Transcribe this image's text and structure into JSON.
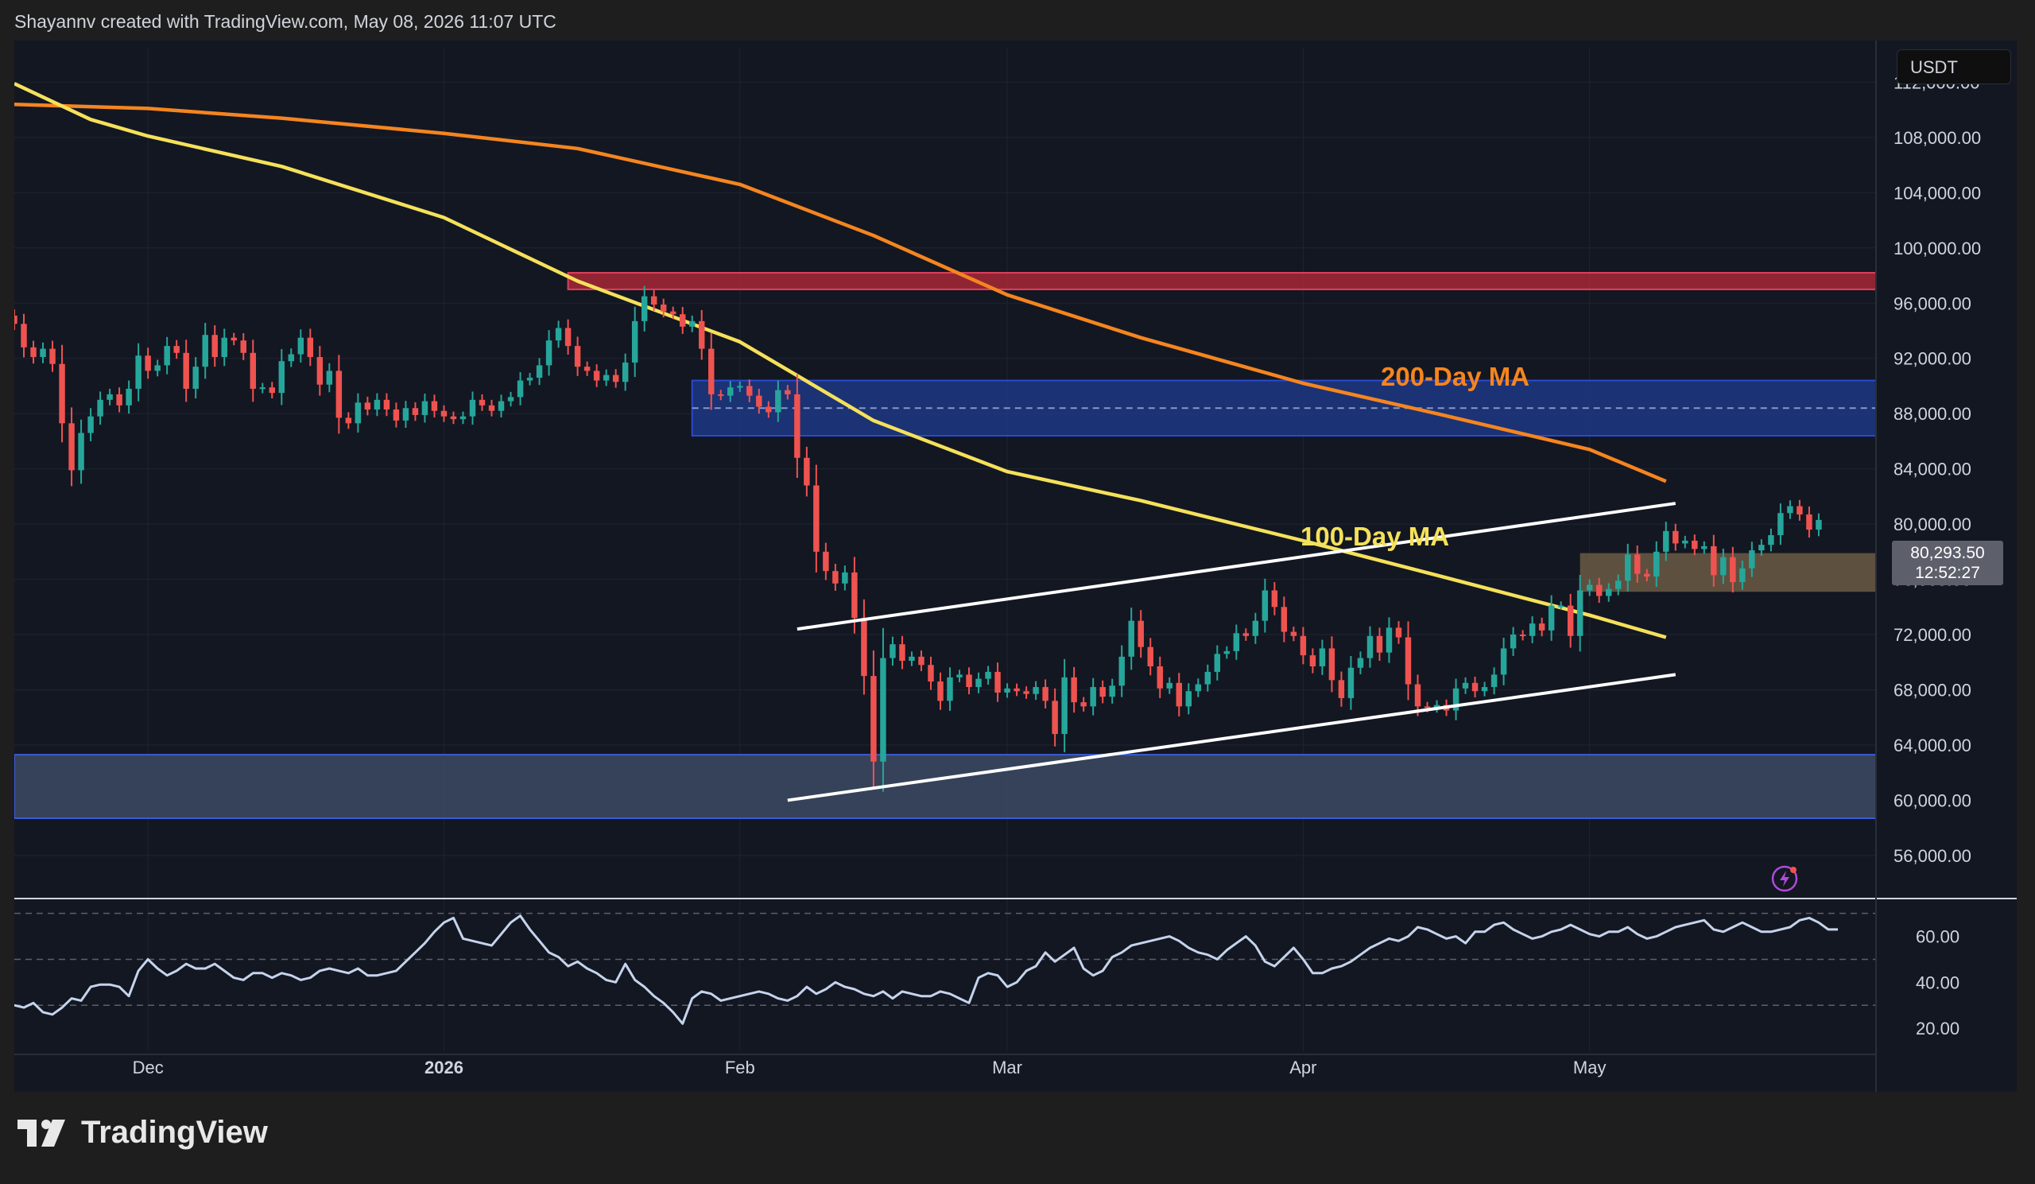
{
  "header": {
    "credit": "Shayannv created with TradingView.com, May 08, 2026 11:07 UTC"
  },
  "toolbar": {
    "currency": "USDT"
  },
  "price_tag": {
    "price": "80,293.50",
    "countdown": "12:52:27"
  },
  "labels": {
    "ma200": "200-Day MA",
    "ma100": "100-Day MA"
  },
  "footer": {
    "brand": "TradingView"
  },
  "colors": {
    "background": "#131722",
    "up": "#26a69a",
    "down": "#ef5350",
    "ma200": "#f5851f",
    "ma100": "#f5e15a",
    "channel": "#ffffff",
    "supply_zone": "#b22838",
    "resistance_zone": "#1e3a8a",
    "support_zone": "#3c4a64",
    "demand_zone": "#6b5a44",
    "rsi_line": "#c5d4ec"
  },
  "icons": {
    "brand": "tradingview-logo-icon",
    "alert": "lightning-alert-icon"
  },
  "chart_data": [
    {
      "type": "candlestick",
      "title": "",
      "ylabel": "",
      "y_axis": [
        "112,000.00",
        "108,000.00",
        "104,000.00",
        "100,000.00",
        "96,000.00",
        "92,000.00",
        "88,000.00",
        "84,000.00",
        "80,000.00",
        "76,000.00",
        "72,000.00",
        "68,000.00",
        "64,000.00",
        "60,000.00",
        "56,000.00"
      ],
      "y_axis_values": [
        112000,
        108000,
        104000,
        100000,
        96000,
        92000,
        88000,
        84000,
        80000,
        76000,
        72000,
        68000,
        64000,
        60000,
        56000
      ],
      "ylim": [
        53000,
        114500
      ],
      "x_axis": [
        "Dec",
        "2026",
        "Feb",
        "Mar",
        "Apr",
        "May"
      ],
      "x_axis_dates": [
        "2025-12-01",
        "2026-01-01",
        "2026-02-01",
        "2026-03-01",
        "2026-04-01",
        "2026-05-01"
      ],
      "xlim": [
        "2025-11-17",
        "2026-05-31"
      ],
      "grid": true,
      "close_series": {
        "start_date": "2025-11-17",
        "interval": "1D",
        "values": [
          94500,
          92800,
          92100,
          92700,
          91600,
          87300,
          83900,
          86600,
          87800,
          89000,
          89400,
          88600,
          89800,
          92200,
          91100,
          91500,
          92900,
          92400,
          89800,
          91400,
          93700,
          92100,
          93500,
          93300,
          92400,
          89800,
          89900,
          89500,
          91800,
          92300,
          93500,
          92100,
          90100,
          91100,
          87700,
          87300,
          88800,
          88300,
          89000,
          88300,
          87500,
          88400,
          87900,
          88900,
          88200,
          87800,
          87600,
          87800,
          89000,
          88600,
          88200,
          88900,
          89200,
          90400,
          90600,
          91500,
          93300,
          94200,
          92900,
          91400,
          91100,
          90400,
          90800,
          90300,
          91700,
          94700,
          96500,
          95900,
          95400,
          95200,
          94300,
          94700,
          92700,
          89400,
          89300,
          89900,
          90000,
          89300,
          88500,
          88100,
          89700,
          89400,
          84800,
          82800,
          78000,
          76600,
          75700,
          76500,
          73200,
          69000,
          62800,
          70300,
          71300,
          70100,
          70400,
          69800,
          68600,
          67200,
          68900,
          69100,
          68200,
          68800,
          69300,
          67800,
          68100,
          67900,
          67700,
          68200,
          67200,
          64800,
          68900,
          67100,
          66800,
          68200,
          67500,
          68300,
          70400,
          73000,
          71100,
          69700,
          68100,
          68500,
          66800,
          67900,
          68400,
          69300,
          70600,
          70800,
          72100,
          71900,
          73000,
          75200,
          74000,
          72200,
          71900,
          70500,
          69700,
          71000,
          68700,
          67400,
          69600,
          70300,
          71900,
          70700,
          72500,
          71800,
          68400,
          66800,
          66700,
          66900,
          66500,
          68100,
          68500,
          67900,
          68200,
          69100,
          71000,
          72000,
          71900,
          72800,
          72300,
          74100,
          74100,
          71900,
          75200,
          75600,
          74800,
          75300,
          75900,
          77800,
          76400,
          76200,
          78000,
          79500,
          78600,
          78800,
          78200,
          78400,
          76300,
          77600,
          75800,
          76800,
          78100,
          78500,
          79200,
          80800,
          81300,
          80700,
          79600,
          80300
        ]
      },
      "horizontal_zones": [
        {
          "name": "supply",
          "from": 97000,
          "to": 98200
        },
        {
          "name": "resistance",
          "from": 86400,
          "to": 90400,
          "dashed_mid": 88400
        },
        {
          "name": "support",
          "from": 58700,
          "to": 63300
        },
        {
          "name": "demand",
          "from": 75100,
          "to": 77900
        }
      ],
      "channel": {
        "upper": [
          {
            "date": "2026-02-07",
            "y": 72400
          },
          {
            "date": "2026-05-10",
            "y": 81500
          }
        ],
        "lower": [
          {
            "date": "2026-02-06",
            "y": 60000
          },
          {
            "date": "2026-05-10",
            "y": 69100
          }
        ]
      },
      "ma200": {
        "label": "200-Day MA",
        "points": [
          [
            "2025-11-17",
            110400
          ],
          [
            "2025-12-01",
            110100
          ],
          [
            "2025-12-15",
            109400
          ],
          [
            "2026-01-01",
            108300
          ],
          [
            "2026-01-15",
            107200
          ],
          [
            "2026-02-01",
            104600
          ],
          [
            "2026-02-15",
            100900
          ],
          [
            "2026-03-01",
            96600
          ],
          [
            "2026-03-15",
            93500
          ],
          [
            "2026-04-01",
            90200
          ],
          [
            "2026-04-15",
            88000
          ],
          [
            "2026-05-01",
            85400
          ],
          [
            "2026-05-09",
            83100
          ]
        ]
      },
      "ma100": {
        "label": "100-Day MA",
        "points": [
          [
            "2025-11-17",
            111900
          ],
          [
            "2025-11-25",
            109300
          ],
          [
            "2025-12-01",
            108100
          ],
          [
            "2025-12-15",
            105900
          ],
          [
            "2026-01-01",
            102200
          ],
          [
            "2026-01-15",
            97600
          ],
          [
            "2026-02-01",
            93200
          ],
          [
            "2026-02-15",
            87500
          ],
          [
            "2026-03-01",
            83800
          ],
          [
            "2026-03-15",
            81700
          ],
          [
            "2026-04-01",
            78800
          ],
          [
            "2026-04-15",
            76300
          ],
          [
            "2026-05-01",
            73400
          ],
          [
            "2026-05-09",
            71800
          ]
        ]
      },
      "current_price": "80,293.50",
      "countdown": "12:52:27"
    },
    {
      "type": "line",
      "title": "",
      "y_axis": [
        "60.00",
        "40.00",
        "20.00"
      ],
      "y_axis_values": [
        60,
        40,
        20
      ],
      "ylim": [
        10,
        73
      ],
      "dashed_levels": [
        70,
        50,
        30
      ],
      "rsi_series": {
        "start_date": "2025-11-17",
        "values": [
          30,
          29,
          31,
          27,
          26,
          29,
          33,
          32,
          38,
          39,
          39,
          38,
          34,
          45,
          50,
          46,
          43,
          45,
          48,
          46,
          46,
          48,
          45,
          42,
          41,
          44,
          44,
          42,
          44,
          43,
          41,
          42,
          45,
          46,
          45,
          44,
          46,
          43,
          43,
          44,
          45,
          49,
          53,
          57,
          62,
          66,
          68,
          59,
          58,
          57,
          56,
          61,
          66,
          69,
          63,
          58,
          53,
          51,
          47,
          49,
          46,
          44,
          41,
          40,
          48,
          41,
          38,
          34,
          31,
          27,
          22,
          33,
          36,
          35,
          32,
          33,
          34,
          35,
          36,
          35,
          33,
          32,
          34,
          38,
          35,
          37,
          40,
          38,
          37,
          35,
          34,
          36,
          33,
          36,
          35,
          34,
          34,
          36,
          35,
          33,
          31,
          42,
          44,
          43,
          38,
          40,
          45,
          47,
          53,
          49,
          52,
          55,
          46,
          43,
          45,
          51,
          53,
          56,
          57,
          58,
          59,
          60,
          58,
          55,
          53,
          52,
          50,
          54,
          57,
          60,
          56,
          49,
          47,
          51,
          55,
          50,
          44,
          44,
          46,
          47,
          49,
          52,
          55,
          57,
          59,
          58,
          60,
          64,
          63,
          61,
          59,
          60,
          57,
          62,
          62,
          65,
          66,
          63,
          61,
          59,
          60,
          62,
          63,
          65,
          63,
          61,
          60,
          62,
          62,
          64,
          61,
          59,
          60,
          62,
          64,
          65,
          66,
          67,
          63,
          62,
          64,
          66,
          64,
          62,
          62,
          63,
          64,
          67,
          68,
          66,
          63,
          63
        ]
      }
    }
  ]
}
